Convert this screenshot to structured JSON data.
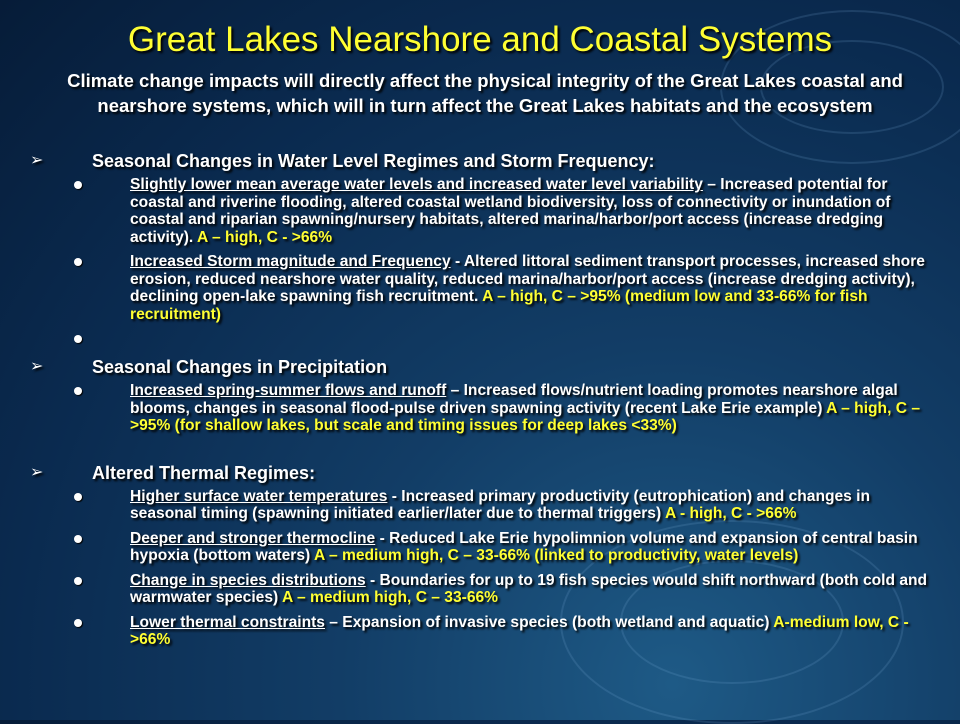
{
  "title": "Great Lakes Nearshore and Coastal Systems",
  "subtitle": "Climate change impacts will directly affect the physical integrity of the Great Lakes coastal and nearshore systems, which will in turn affect the Great Lakes habitats and the ecosystem",
  "colors": {
    "title": "#ffff33",
    "rating": "#ffff33",
    "text": "#ffffff",
    "background": "#0a2a4f"
  },
  "icons": {
    "section": "arrow-bullet-icon",
    "item": "round-bullet-icon"
  },
  "sections": [
    {
      "heading": "Seasonal Changes in Water Level Regimes and Storm Frequency:",
      "items": [
        {
          "topic": "Slightly lower mean average water levels and increased water level variability",
          "text": " – Increased potential for coastal and riverine flooding, altered coastal wetland biodiversity, loss of connectivity or inundation of coastal and riparian spawning/nursery habitats, altered marina/harbor/port access (increase dredging activity).  ",
          "rating": "A – high, C - >66%"
        },
        {
          "topic": "Increased Storm magnitude and Frequency",
          "text": " - Altered littoral sediment transport processes, increased shore erosion, reduced nearshore water quality, reduced marina/harbor/port access (increase dredging activity), declining open-lake spawning fish recruitment.  ",
          "rating": "A – high, C – >95% (medium low and 33-66% for fish recruitment)"
        },
        {
          "topic": "",
          "text": "",
          "rating": ""
        }
      ]
    },
    {
      "heading": "Seasonal Changes in Precipitation",
      "items": [
        {
          "topic": "Increased spring-summer flows and runoff",
          "text": " – Increased flows/nutrient loading promotes nearshore algal blooms, changes in seasonal flood-pulse driven spawning activity (recent Lake Erie example) ",
          "rating": "A – high, C – >95% (for shallow lakes, but scale and timing issues for deep lakes <33%)"
        }
      ]
    },
    {
      "heading": "Altered Thermal Regimes:",
      "items": [
        {
          "topic": "Higher surface water temperatures",
          "text": " - Increased primary productivity (eutrophication) and changes in seasonal timing (spawning initiated earlier/later due to thermal triggers) ",
          "rating": "A - high, C - >66%"
        },
        {
          "topic": "Deeper and stronger thermocline",
          "text": " - Reduced Lake Erie hypolimnion volume and expansion of central basin hypoxia (bottom waters) ",
          "rating": "A – medium high, C – 33-66% (linked to productivity, water levels)"
        },
        {
          "topic": "Change in species distributions",
          "text": " - Boundaries for up to 19 fish species would shift northward (both cold and warmwater species) ",
          "rating": "A – medium high, C – 33-66%"
        },
        {
          "topic": "Lower thermal constraints",
          "text": " – Expansion of invasive species (both wetland and aquatic) ",
          "rating": "A-medium low, C - >66%"
        }
      ]
    }
  ]
}
